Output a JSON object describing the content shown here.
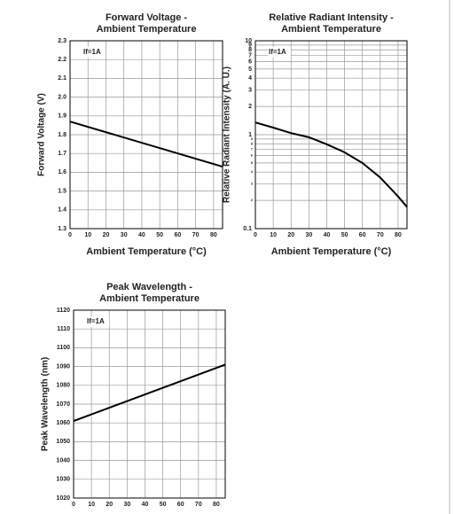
{
  "chart_data": [
    {
      "type": "line",
      "title": [
        "Forward Voltage -",
        "Ambient Temperature"
      ],
      "x_label": "Ambient Temperature (°C)",
      "y_label": "Forward Voltage (V)",
      "annotation": "If=1A",
      "x": [
        0,
        85
      ],
      "values": [
        1.87,
        1.63
      ],
      "color": "#000000",
      "xlim": [
        0,
        85
      ],
      "xticks": [
        0,
        10,
        20,
        30,
        40,
        50,
        60,
        70,
        80
      ],
      "ylim": [
        1.3,
        2.3
      ],
      "yticks": [
        1.3,
        1.4,
        1.5,
        1.6,
        1.7,
        1.8,
        1.9,
        {
          "value": 2,
          "label": "2.0"
        },
        2.1,
        2.2,
        2.3
      ],
      "grid": true,
      "log_y": false
    },
    {
      "type": "line",
      "title": [
        "Relative Radiant Intensity -",
        "Ambient Temperature"
      ],
      "x_label": "Ambient Temperature (°C)",
      "y_label": "Relative Radiant Intensity (A. U.)",
      "annotation": "If=1A",
      "x": [
        0,
        10,
        20,
        30,
        40,
        50,
        60,
        70,
        80,
        85
      ],
      "values": [
        1.35,
        1.19,
        1.04,
        0.94,
        0.79,
        0.65,
        0.5,
        0.35,
        0.22,
        0.17
      ],
      "color": "#000000",
      "xlim": [
        0,
        85
      ],
      "xticks": [
        0,
        10,
        20,
        30,
        40,
        50,
        60,
        70,
        80
      ],
      "ylim": [
        0.1,
        10
      ],
      "yticks": [
        0.1,
        {
          "value": 0.2,
          "label": "2"
        },
        {
          "value": 0.3,
          "label": "3"
        },
        {
          "value": 0.4,
          "label": "4"
        },
        {
          "value": 0.5,
          "label": "5"
        },
        {
          "value": 0.6,
          "label": "6"
        },
        {
          "value": 0.7,
          "label": "7"
        },
        {
          "value": 0.8,
          "label": "8"
        },
        {
          "value": 0.9,
          "label": "9"
        },
        1,
        2,
        3,
        4,
        5,
        6,
        7,
        8,
        9,
        10
      ],
      "grid": true,
      "log_y": true
    },
    {
      "type": "line",
      "title": [
        "Peak Wavelength -",
        "Ambient Temperature"
      ],
      "x_label": "Ambient Temperature (°C)",
      "y_label": "Peak Wavelength (nm)",
      "annotation": "If=1A",
      "x": [
        0,
        85
      ],
      "values": [
        1061,
        1091
      ],
      "color": "#000000",
      "xlim": [
        0,
        85
      ],
      "xticks": [
        0,
        10,
        20,
        30,
        40,
        50,
        60,
        70,
        80
      ],
      "ylim": [
        1020,
        1120
      ],
      "yticks": [
        1020,
        1030,
        1040,
        1050,
        1060,
        1070,
        1080,
        1090,
        1100,
        1110,
        1120
      ],
      "grid": true,
      "log_y": false
    }
  ]
}
